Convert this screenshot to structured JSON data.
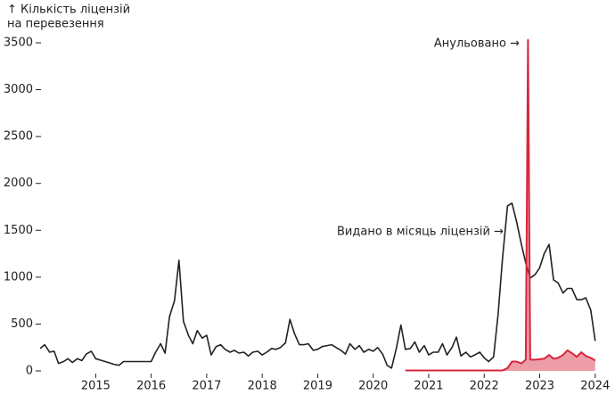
{
  "chart_data": {
    "type": "line",
    "y_label_lines": [
      "↑ Кількість ліцензій",
      "на перевезення"
    ],
    "annotations": [
      "Анульовано →",
      "Видано в місяць ліцензій →"
    ],
    "xlim": [
      2013.95,
      2024.1
    ],
    "xticks": [
      2015,
      2016,
      2017,
      2018,
      2019,
      2020,
      2021,
      2022,
      2023,
      2024
    ],
    "ylim": [
      0,
      3500
    ],
    "yticks": [
      0,
      500,
      1000,
      1500,
      2000,
      2500,
      3000,
      3500
    ],
    "series": [
      {
        "color": "#222222",
        "area": false,
        "x": [
          2014.0,
          2014.08,
          2014.17,
          2014.25,
          2014.33,
          2014.42,
          2014.5,
          2014.58,
          2014.67,
          2014.75,
          2014.83,
          2014.92,
          2015.0,
          2015.17,
          2015.33,
          2015.42,
          2015.5,
          2015.67,
          2015.83,
          2016.0,
          2016.08,
          2016.17,
          2016.25,
          2016.33,
          2016.42,
          2016.5,
          2016.58,
          2016.67,
          2016.75,
          2016.83,
          2016.92,
          2017.0,
          2017.08,
          2017.17,
          2017.25,
          2017.33,
          2017.42,
          2017.5,
          2017.58,
          2017.67,
          2017.75,
          2017.83,
          2017.92,
          2018.0,
          2018.08,
          2018.17,
          2018.25,
          2018.33,
          2018.42,
          2018.5,
          2018.58,
          2018.67,
          2018.75,
          2018.83,
          2018.92,
          2019.0,
          2019.08,
          2019.17,
          2019.25,
          2019.33,
          2019.42,
          2019.5,
          2019.58,
          2019.67,
          2019.75,
          2019.83,
          2019.92,
          2020.0,
          2020.08,
          2020.17,
          2020.25,
          2020.33,
          2020.42,
          2020.5,
          2020.58,
          2020.67,
          2020.75,
          2020.83,
          2020.92,
          2021.0,
          2021.08,
          2021.17,
          2021.25,
          2021.33,
          2021.42,
          2021.5,
          2021.58,
          2021.67,
          2021.75,
          2021.83,
          2021.92,
          2022.0,
          2022.08,
          2022.17,
          2022.25,
          2022.33,
          2022.42,
          2022.5,
          2022.58,
          2022.67,
          2022.75,
          2022.83,
          2022.92,
          2023.0,
          2023.08,
          2023.17,
          2023.25,
          2023.33,
          2023.42,
          2023.5,
          2023.58,
          2023.67,
          2023.75,
          2023.83,
          2023.92,
          2024.0
        ],
        "values": [
          240,
          280,
          200,
          210,
          80,
          100,
          130,
          90,
          130,
          110,
          180,
          210,
          130,
          100,
          70,
          60,
          100,
          100,
          100,
          100,
          200,
          290,
          190,
          580,
          750,
          1180,
          530,
          380,
          290,
          430,
          350,
          380,
          170,
          260,
          280,
          230,
          200,
          220,
          190,
          200,
          160,
          200,
          210,
          170,
          200,
          240,
          230,
          250,
          300,
          550,
          400,
          280,
          280,
          290,
          220,
          230,
          260,
          270,
          280,
          250,
          220,
          180,
          290,
          230,
          270,
          200,
          230,
          210,
          250,
          180,
          60,
          30,
          250,
          490,
          230,
          240,
          310,
          200,
          270,
          170,
          200,
          200,
          290,
          170,
          250,
          360,
          160,
          200,
          150,
          170,
          200,
          140,
          100,
          150,
          600,
          1200,
          1760,
          1790,
          1600,
          1350,
          1150,
          990,
          1030,
          1100,
          1250,
          1350,
          970,
          940,
          830,
          880,
          880,
          760,
          760,
          780,
          650,
          320
        ]
      },
      {
        "color": "#d7263d",
        "area": true,
        "x": [
          2020.58,
          2021.0,
          2021.5,
          2022.0,
          2022.33,
          2022.42,
          2022.5,
          2022.58,
          2022.67,
          2022.75,
          2022.79,
          2022.83,
          2022.92,
          2023.0,
          2023.08,
          2023.17,
          2023.25,
          2023.33,
          2023.42,
          2023.5,
          2023.58,
          2023.67,
          2023.75,
          2023.83,
          2023.92,
          2024.0
        ],
        "values": [
          5,
          5,
          5,
          5,
          5,
          30,
          100,
          100,
          80,
          120,
          3530,
          120,
          120,
          125,
          130,
          170,
          130,
          140,
          170,
          220,
          190,
          150,
          200,
          160,
          140,
          110
        ]
      }
    ]
  }
}
